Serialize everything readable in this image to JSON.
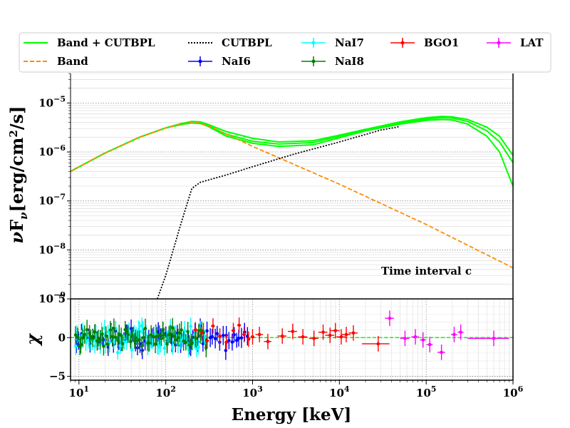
{
  "chart_data": [
    {
      "type": "line",
      "panel": "spectrum",
      "x_scale": "log",
      "y_scale": "log",
      "xlim": [
        8,
        1000000
      ],
      "ylim": [
        1e-09,
        4e-05
      ],
      "ylabel": "νFν[erg/cm²/s]",
      "y_ticks": [
        {
          "value": 1e-05,
          "base": "10",
          "exp": "−5"
        },
        {
          "value": 1e-06,
          "base": "10",
          "exp": "−6"
        },
        {
          "value": 1e-07,
          "base": "10",
          "exp": "−7"
        },
        {
          "value": 1e-08,
          "base": "10",
          "exp": "−8"
        },
        {
          "value": 1e-09,
          "base": "10",
          "exp": "−9"
        }
      ],
      "annotation": "Time interval c",
      "series": [
        {
          "name": "Band + CUTBPL",
          "color": "#00ff00",
          "style": "solid",
          "x": [
            8,
            20,
            50,
            100,
            150,
            200,
            250,
            300,
            500,
            1000,
            2000,
            5000,
            10000,
            20000,
            50000,
            100000,
            150000,
            200000,
            300000,
            500000,
            700000,
            1000000
          ],
          "y": [
            4e-07,
            9.5e-07,
            2e-06,
            3.1e-06,
            3.8e-06,
            4.2e-06,
            4.1e-06,
            3.7e-06,
            2.6e-06,
            1.9e-06,
            1.6e-06,
            1.7e-06,
            2.2e-06,
            2.9e-06,
            4.1e-06,
            5e-06,
            5.3e-06,
            5.2e-06,
            4.6e-06,
            3.2e-06,
            2.1e-06,
            8.5e-07
          ]
        },
        {
          "name": "Band + CUTBPL",
          "color": "#00ff00",
          "style": "solid",
          "x": [
            8,
            20,
            50,
            100,
            150,
            200,
            250,
            300,
            500,
            1000,
            2000,
            5000,
            10000,
            20000,
            50000,
            100000,
            150000,
            200000,
            300000,
            500000,
            700000,
            1000000
          ],
          "y": [
            4e-07,
            9.5e-07,
            2e-06,
            3.1e-06,
            3.7e-06,
            4e-06,
            3.9e-06,
            3.5e-06,
            2.3e-06,
            1.65e-06,
            1.45e-06,
            1.55e-06,
            2.1e-06,
            2.8e-06,
            3.9e-06,
            4.7e-06,
            5e-06,
            4.9e-06,
            4.2e-06,
            2.7e-06,
            1.6e-06,
            6e-07
          ]
        },
        {
          "name": "Band + CUTBPL",
          "color": "#00ff00",
          "style": "solid",
          "x": [
            8,
            20,
            50,
            100,
            150,
            200,
            250,
            300,
            500,
            1000,
            2000,
            5000,
            10000,
            20000,
            50000,
            100000,
            150000,
            200000,
            300000,
            500000,
            700000,
            1000000
          ],
          "y": [
            4e-07,
            9.5e-07,
            2e-06,
            3.1e-06,
            3.6e-06,
            3.9e-06,
            3.8e-06,
            3.4e-06,
            2.1e-06,
            1.5e-06,
            1.3e-06,
            1.4e-06,
            1.95e-06,
            2.7e-06,
            3.7e-06,
            4.4e-06,
            4.6e-06,
            4.5e-06,
            3.7e-06,
            2.1e-06,
            1e-06,
            2e-07
          ]
        },
        {
          "name": "Band",
          "color": "#ff8c00",
          "style": "dashed",
          "x": [
            8,
            20,
            50,
            100,
            150,
            200,
            220,
            300,
            1000,
            10000,
            100000,
            1000000
          ],
          "y": [
            4e-07,
            9.5e-07,
            2e-06,
            3.1e-06,
            3.7e-06,
            4e-06,
            4.05e-06,
            3.5e-06,
            1.3e-06,
            2.2e-07,
            3.3e-08,
            4.3e-09
          ]
        },
        {
          "name": "CUTBPL",
          "color": "#000000",
          "style": "dotted",
          "x": [
            80,
            100,
            150,
            200,
            250,
            500,
            1000,
            3000,
            10000,
            30000,
            50000
          ],
          "y": [
            1e-09,
            3e-09,
            3.5e-08,
            1.8e-07,
            2.4e-07,
            3.4e-07,
            5e-07,
            9e-07,
            1.6e-06,
            2.8e-06,
            3.3e-06
          ]
        }
      ],
      "legend": [
        {
          "label": "Band + CUTBPL",
          "color": "#00ff00",
          "kind": "solid"
        },
        {
          "label": "Band",
          "color": "#ff8c00",
          "kind": "dashed"
        },
        {
          "label": "CUTBPL",
          "color": "#000000",
          "kind": "dotted"
        },
        {
          "label": "NaI6",
          "color": "#0000ff",
          "kind": "errorbar"
        },
        {
          "label": "NaI7",
          "color": "#00ffff",
          "kind": "errorbar"
        },
        {
          "label": "NaI8",
          "color": "#008000",
          "kind": "errorbar"
        },
        {
          "label": "BGO1",
          "color": "#ff0000",
          "kind": "errorbar"
        },
        {
          "label": "LAT",
          "color": "#ff00ff",
          "kind": "errorbar"
        }
      ]
    },
    {
      "type": "scatter",
      "panel": "residuals",
      "x_scale": "log",
      "xlim": [
        8,
        1000000
      ],
      "ylim": [
        -5.5,
        5
      ],
      "xlabel": "Energy [keV]",
      "ylabel": "χ",
      "y_ticks": [
        {
          "value": 5,
          "label": "5"
        },
        {
          "value": 0,
          "label": "0"
        },
        {
          "value": -5,
          "label": "−5"
        }
      ],
      "x_ticks": [
        {
          "value": 10,
          "base": "10",
          "exp": "1"
        },
        {
          "value": 100,
          "base": "10",
          "exp": "2"
        },
        {
          "value": 1000,
          "base": "10",
          "exp": "3"
        },
        {
          "value": 10000,
          "base": "10",
          "exp": "4"
        },
        {
          "value": 100000,
          "base": "10",
          "exp": "5"
        },
        {
          "value": 1000000,
          "base": "10",
          "exp": "6"
        }
      ],
      "zero_line": {
        "value": 0,
        "color": "#00ff00",
        "style": "dashed"
      },
      "series": [
        {
          "name": "NaI6",
          "color": "#0000ff",
          "x_range": [
            9,
            900
          ],
          "y_spread": 1.4,
          "seed": 6
        },
        {
          "name": "NaI7",
          "color": "#00ffff",
          "x_range": [
            9,
            300
          ],
          "y_spread": 1.6,
          "seed": 7
        },
        {
          "name": "NaI8",
          "color": "#008000",
          "x_range": [
            9,
            300
          ],
          "y_spread": 1.3,
          "seed": 8
        },
        {
          "name": "BGO1",
          "color": "#ff0000",
          "x": [
            220,
            260,
            300,
            350,
            420,
            500,
            600,
            700,
            800,
            900,
            1000,
            1200,
            1500,
            2200,
            2900,
            3800,
            5100,
            6500,
            7800,
            9000,
            10500,
            12000,
            14500,
            28000
          ],
          "y": [
            1.0,
            0.6,
            -0.4,
            1.5,
            0.2,
            -0.6,
            0.9,
            1.6,
            0.4,
            -0.2,
            0.1,
            0.4,
            -0.5,
            0.2,
            0.8,
            0.1,
            -0.1,
            0.7,
            0.3,
            0.9,
            0.1,
            0.4,
            0.6,
            -0.8
          ],
          "yerr": [
            1,
            1,
            1,
            1,
            1,
            1,
            1,
            1,
            1,
            1,
            1,
            1,
            1,
            1,
            1,
            1,
            1,
            1,
            1,
            1,
            1,
            1,
            1,
            1
          ],
          "xerr_frac": [
            0.05,
            0.05,
            0.05,
            0.05,
            0.05,
            0.05,
            0.05,
            0.05,
            0.05,
            0.05,
            0.05,
            0.1,
            0.1,
            0.12,
            0.12,
            0.12,
            0.12,
            0.12,
            0.12,
            0.12,
            0.12,
            0.12,
            0.12,
            0.35
          ]
        },
        {
          "name": "LAT",
          "color": "#ff00ff",
          "x": [
            38000,
            57000,
            75000,
            92000,
            110000,
            150000,
            210000,
            250000,
            600000
          ],
          "y": [
            2.5,
            -0.1,
            0.1,
            -0.3,
            -0.9,
            -1.9,
            0.4,
            0.7,
            -0.1
          ],
          "yerr": [
            1,
            1,
            1,
            1,
            1,
            1,
            1,
            1,
            1
          ],
          "xerr_frac": [
            0.12,
            0.12,
            0.1,
            0.08,
            0.08,
            0.1,
            0.08,
            0.08,
            0.5
          ]
        }
      ]
    }
  ]
}
